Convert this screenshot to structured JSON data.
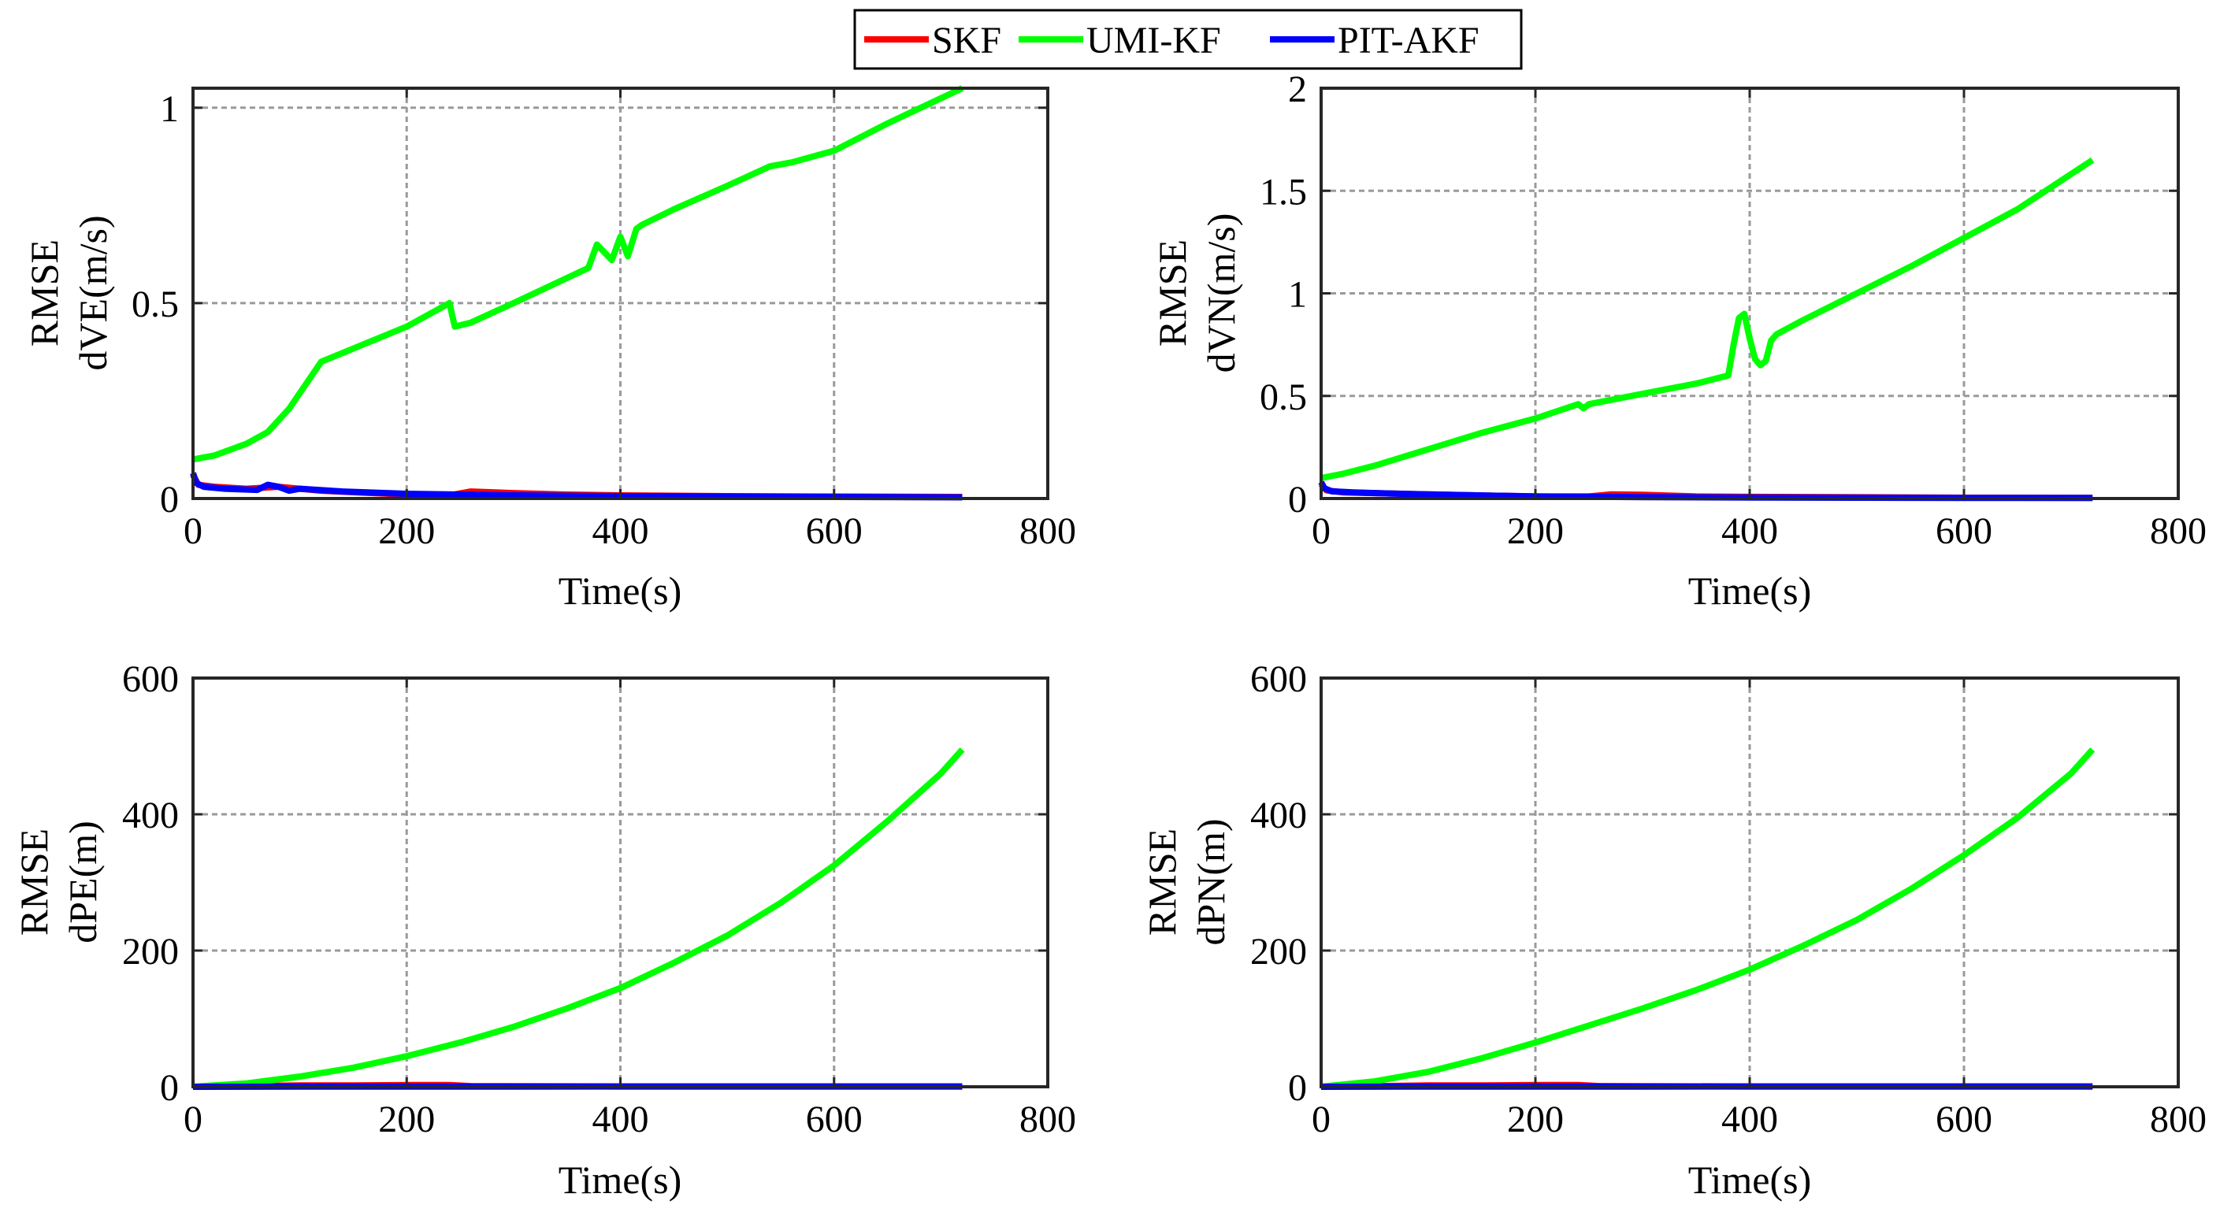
{
  "legend": [
    {
      "name": "SKF",
      "color": "#ff0000"
    },
    {
      "name": "UMI-KF",
      "color": "#00ff00"
    },
    {
      "name": "PIT-AKF",
      "color": "#0000ff"
    }
  ],
  "chart_data": [
    {
      "type": "line",
      "xlabel": "Time(s)",
      "ylabel_line1": "RMSE",
      "ylabel_line2": "dVE(m/s)",
      "xlim": [
        0,
        800
      ],
      "ylim": [
        0,
        1.05
      ],
      "xticks": [
        0,
        200,
        400,
        600,
        800
      ],
      "xtick_labels": [
        "0",
        "200",
        "400",
        "600",
        "800"
      ],
      "yticks": [
        0,
        0.5,
        1
      ],
      "ytick_labels": [
        "0",
        "0.5",
        "1"
      ],
      "grid": true,
      "series": [
        {
          "name": "SKF",
          "x": [
            0,
            5,
            20,
            50,
            80,
            120,
            160,
            200,
            240,
            260,
            300,
            350,
            400,
            500,
            600,
            720
          ],
          "y": [
            0.06,
            0.035,
            0.03,
            0.025,
            0.03,
            0.02,
            0.015,
            0.01,
            0.008,
            0.018,
            0.014,
            0.01,
            0.008,
            0.006,
            0.005,
            0.004
          ]
        },
        {
          "name": "UMI-KF",
          "x": [
            0,
            20,
            50,
            70,
            90,
            120,
            200,
            240,
            245,
            260,
            300,
            370,
            378,
            385,
            392,
            400,
            407,
            415,
            420,
            450,
            500,
            540,
            560,
            600,
            650,
            720
          ],
          "y": [
            0.1,
            0.11,
            0.14,
            0.17,
            0.23,
            0.35,
            0.44,
            0.5,
            0.44,
            0.45,
            0.5,
            0.59,
            0.65,
            0.63,
            0.61,
            0.67,
            0.62,
            0.69,
            0.7,
            0.74,
            0.8,
            0.85,
            0.86,
            0.89,
            0.96,
            1.05
          ]
        },
        {
          "name": "PIT-AKF",
          "x": [
            0,
            3,
            10,
            30,
            60,
            70,
            80,
            90,
            100,
            140,
            200,
            300,
            400,
            500,
            600,
            720
          ],
          "y": [
            0.065,
            0.04,
            0.03,
            0.025,
            0.022,
            0.035,
            0.03,
            0.02,
            0.025,
            0.018,
            0.012,
            0.008,
            0.006,
            0.005,
            0.004,
            0.003
          ]
        }
      ]
    },
    {
      "type": "line",
      "xlabel": "Time(s)",
      "ylabel_line1": "RMSE",
      "ylabel_line2": "dVN(m/s)",
      "xlim": [
        0,
        800
      ],
      "ylim": [
        0,
        2
      ],
      "xticks": [
        0,
        200,
        400,
        600,
        800
      ],
      "xtick_labels": [
        "0",
        "200",
        "400",
        "600",
        "800"
      ],
      "yticks": [
        0,
        0.5,
        1,
        1.5,
        2
      ],
      "ytick_labels": [
        "0",
        "0.5",
        "1",
        "1.5",
        "2"
      ],
      "grid": true,
      "series": [
        {
          "name": "SKF",
          "x": [
            0,
            5,
            20,
            60,
            100,
            150,
            200,
            250,
            270,
            300,
            350,
            400,
            500,
            600,
            720
          ],
          "y": [
            0.07,
            0.04,
            0.03,
            0.025,
            0.02,
            0.015,
            0.01,
            0.01,
            0.02,
            0.018,
            0.01,
            0.008,
            0.006,
            0.004,
            0.003
          ]
        },
        {
          "name": "UMI-KF",
          "x": [
            0,
            20,
            50,
            100,
            150,
            200,
            240,
            245,
            250,
            300,
            350,
            380,
            385,
            390,
            395,
            400,
            405,
            410,
            415,
            420,
            425,
            450,
            500,
            550,
            600,
            650,
            720
          ],
          "y": [
            0.1,
            0.12,
            0.16,
            0.24,
            0.32,
            0.39,
            0.46,
            0.44,
            0.46,
            0.51,
            0.56,
            0.6,
            0.75,
            0.88,
            0.9,
            0.78,
            0.68,
            0.65,
            0.67,
            0.77,
            0.8,
            0.87,
            1.0,
            1.13,
            1.27,
            1.41,
            1.65
          ]
        },
        {
          "name": "PIT-AKF",
          "x": [
            0,
            3,
            10,
            30,
            60,
            100,
            150,
            200,
            300,
            400,
            500,
            600,
            720
          ],
          "y": [
            0.08,
            0.05,
            0.035,
            0.03,
            0.025,
            0.02,
            0.015,
            0.01,
            0.007,
            0.005,
            0.004,
            0.003,
            0.003
          ]
        }
      ]
    },
    {
      "type": "line",
      "xlabel": "Time(s)",
      "ylabel_line1": "RMSE",
      "ylabel_line2": "dPE(m)",
      "xlim": [
        0,
        800
      ],
      "ylim": [
        0,
        600
      ],
      "xticks": [
        0,
        200,
        400,
        600,
        800
      ],
      "xtick_labels": [
        "0",
        "200",
        "400",
        "600",
        "800"
      ],
      "yticks": [
        0,
        200,
        400,
        600
      ],
      "ytick_labels": [
        "0",
        "200",
        "400",
        "600"
      ],
      "grid": true,
      "series": [
        {
          "name": "SKF",
          "x": [
            0,
            50,
            100,
            150,
            200,
            240,
            260,
            400,
            720
          ],
          "y": [
            0,
            1,
            2,
            2,
            2.5,
            2.5,
            1,
            0.5,
            0.5
          ]
        },
        {
          "name": "UMI-KF",
          "x": [
            0,
            50,
            100,
            150,
            200,
            250,
            300,
            350,
            400,
            450,
            500,
            550,
            600,
            650,
            700,
            720
          ],
          "y": [
            0,
            5,
            15,
            28,
            45,
            65,
            88,
            115,
            145,
            182,
            222,
            270,
            325,
            390,
            460,
            495
          ]
        },
        {
          "name": "PIT-AKF",
          "x": [
            0,
            100,
            200,
            300,
            400,
            500,
            600,
            720
          ],
          "y": [
            0,
            0.3,
            0.4,
            0.4,
            0.5,
            0.5,
            0.5,
            0.5
          ]
        }
      ]
    },
    {
      "type": "line",
      "xlabel": "Time(s)",
      "ylabel_line1": "RMSE",
      "ylabel_line2": "dPN(m)",
      "xlim": [
        0,
        800
      ],
      "ylim": [
        0,
        600
      ],
      "xticks": [
        0,
        200,
        400,
        600,
        800
      ],
      "xtick_labels": [
        "0",
        "200",
        "400",
        "600",
        "800"
      ],
      "yticks": [
        0,
        200,
        400,
        600
      ],
      "ytick_labels": [
        "0",
        "200",
        "400",
        "600"
      ],
      "grid": true,
      "series": [
        {
          "name": "SKF",
          "x": [
            0,
            50,
            100,
            150,
            200,
            240,
            260,
            400,
            720
          ],
          "y": [
            0,
            1,
            2,
            2,
            2.5,
            2.5,
            1,
            0.5,
            0.5
          ]
        },
        {
          "name": "UMI-KF",
          "x": [
            0,
            50,
            100,
            150,
            200,
            250,
            300,
            350,
            400,
            450,
            500,
            550,
            600,
            650,
            700,
            720
          ],
          "y": [
            0,
            8,
            22,
            42,
            65,
            90,
            115,
            142,
            172,
            207,
            245,
            290,
            340,
            395,
            460,
            495
          ]
        },
        {
          "name": "PIT-AKF",
          "x": [
            0,
            100,
            200,
            300,
            400,
            500,
            600,
            720
          ],
          "y": [
            0,
            0.3,
            0.4,
            0.4,
            0.5,
            0.5,
            0.5,
            0.5
          ]
        }
      ]
    }
  ]
}
